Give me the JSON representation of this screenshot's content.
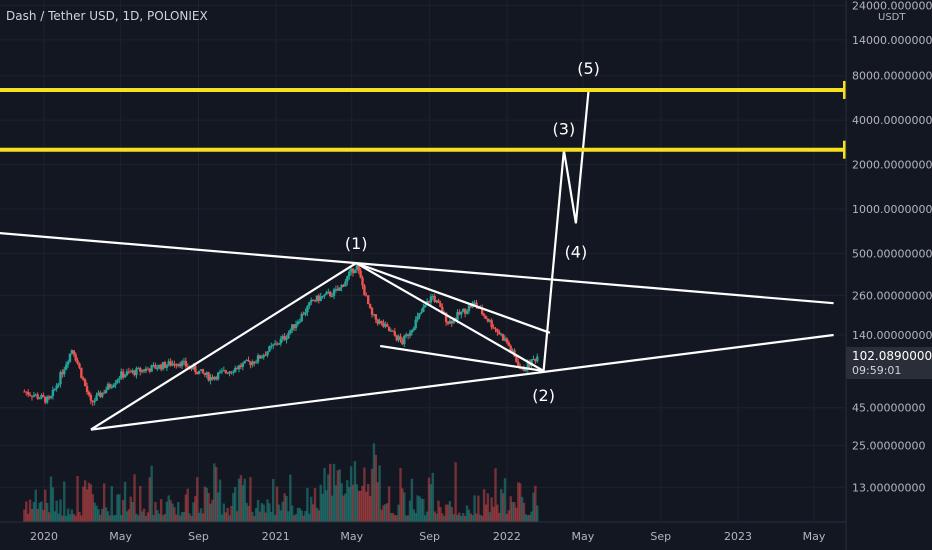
{
  "header": {
    "title": "Dash / Tether USD, 1D, POLONIEX",
    "unit": "USDT"
  },
  "colors": {
    "background": "#131722",
    "grid": "#1e222d",
    "text": "#b2b5be",
    "up": "#26a69a",
    "down": "#ef5350",
    "level": "#f5e11d",
    "annotation": "#ffffff",
    "price_label": "#2a2e39"
  },
  "chart_data": {
    "type": "line",
    "scale": "log",
    "x_ticks": [
      "2020",
      "May",
      "Sep",
      "2021",
      "May",
      "Sep",
      "2022",
      "May",
      "Sep",
      "2023",
      "May"
    ],
    "y_ticks": [
      "24000.00000000",
      "14000.00000000",
      "8000.00000000",
      "4000.00000000",
      "2000.00000000",
      "1000.00000000",
      "500.00000000",
      "260.00000000",
      "140.00000000",
      "45.00000000",
      "25.00000000",
      "13.00000000"
    ],
    "levels": [
      {
        "value": 6406.5026259,
        "label": "6406.50262590"
      },
      {
        "value": 2521.56645482,
        "label": "2521.56645482"
      }
    ],
    "last_price": {
      "label": "102.08900000",
      "countdown": "09:59:01"
    },
    "wave_labels": [
      "(1)",
      "(2)",
      "(3)",
      "(4)",
      "(5)"
    ],
    "price_series": [
      {
        "t": "2019-12-01",
        "close": 58
      },
      {
        "t": "2020-01-10",
        "close": 50
      },
      {
        "t": "2020-02-15",
        "close": 115
      },
      {
        "t": "2020-03-15",
        "close": 48
      },
      {
        "t": "2020-05-01",
        "close": 75
      },
      {
        "t": "2020-08-01",
        "close": 92
      },
      {
        "t": "2020-09-20",
        "close": 72
      },
      {
        "t": "2020-12-01",
        "close": 95
      },
      {
        "t": "2021-01-15",
        "close": 135
      },
      {
        "t": "2021-03-01",
        "close": 240
      },
      {
        "t": "2021-04-10",
        "close": 280
      },
      {
        "t": "2021-05-08",
        "close": 420
      },
      {
        "t": "2021-06-01",
        "close": 190
      },
      {
        "t": "2021-07-20",
        "close": 125
      },
      {
        "t": "2021-09-05",
        "close": 260
      },
      {
        "t": "2021-10-01",
        "close": 170
      },
      {
        "t": "2021-11-10",
        "close": 230
      },
      {
        "t": "2022-01-01",
        "close": 125
      },
      {
        "t": "2022-01-24",
        "close": 80
      },
      {
        "t": "2022-02-20",
        "close": 102
      }
    ],
    "annotations": [
      {
        "name": "upper-trendline",
        "points": [
          [
            "2019-10-01",
            700
          ],
          [
            "2023-06-01",
            230
          ]
        ]
      },
      {
        "name": "lower-trendline",
        "points": [
          [
            "2020-03-15",
            32
          ],
          [
            "2023-06-01",
            140
          ]
        ]
      },
      {
        "name": "impulse-line",
        "points": [
          [
            "2020-03-15",
            32
          ],
          [
            "2021-05-08",
            430
          ]
        ]
      },
      {
        "name": "wedge-upper",
        "points": [
          [
            "2021-05-08",
            430
          ],
          [
            "2022-03-10",
            145
          ]
        ]
      },
      {
        "name": "wedge-lower",
        "points": [
          [
            "2021-05-08",
            430
          ],
          [
            "2022-02-28",
            80
          ]
        ]
      },
      {
        "name": "wedge-base",
        "points": [
          [
            "2021-06-15",
            118
          ],
          [
            "2022-02-28",
            80
          ]
        ]
      },
      {
        "name": "projection",
        "points": [
          [
            "2022-02-28",
            80
          ],
          [
            "2022-04-01",
            2500
          ],
          [
            "2022-04-20",
            800
          ],
          [
            "2022-05-10",
            6400
          ]
        ]
      }
    ]
  }
}
